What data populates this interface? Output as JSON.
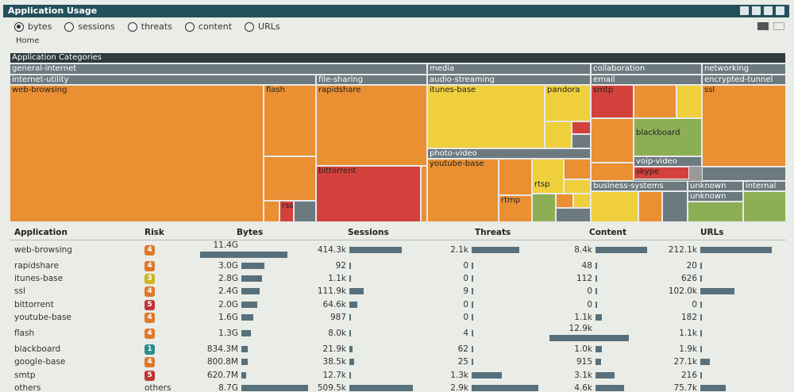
{
  "title": "Application Usage",
  "radios": [
    {
      "label": "bytes",
      "selected": true
    },
    {
      "label": "sessions",
      "selected": false
    },
    {
      "label": "threats",
      "selected": false
    },
    {
      "label": "content",
      "selected": false
    },
    {
      "label": "URLs",
      "selected": false
    }
  ],
  "home": "Home",
  "treemap": {
    "root": "Application Categories",
    "categories": [
      "general-internet",
      "media",
      "collaboration",
      "networking"
    ],
    "subcategories": [
      "internet-utility",
      "file-sharing",
      "audio-streaming",
      "email",
      "encrypted-tunnel",
      "photo-video",
      "business-systems",
      "unknown",
      "internal",
      "voip-video",
      "unknown"
    ],
    "apps": [
      "web-browsing",
      "flash",
      "rapidshare",
      "itunes-base",
      "pandora",
      "smtp",
      "ssl",
      "bittorrent",
      "youtube-base",
      "blackboard",
      "skype",
      "rtmp",
      "rtsp",
      "rss"
    ]
  },
  "table": {
    "headers": [
      "Application",
      "Risk",
      "Bytes",
      "Sessions",
      "Threats",
      "Content",
      "URLs"
    ],
    "rows": [
      {
        "app": "web-browsing",
        "risk": "4",
        "risk_color": "#e0782a",
        "bytes": "11.4G",
        "bytes_pct": 1.0,
        "sessions": "414.3k",
        "sessions_pct": 0.82,
        "threats": "2.1k",
        "threats_pct": 0.72,
        "content": "8.4k",
        "content_pct": 0.65,
        "urls": "212.1k",
        "urls_pct": 1.0
      },
      {
        "app": "rapidshare",
        "risk": "4",
        "risk_color": "#e0782a",
        "bytes": "3.0G",
        "bytes_pct": 0.26,
        "sessions": "92",
        "sessions_pct": 0.01,
        "threats": "0",
        "threats_pct": 0,
        "content": "48",
        "content_pct": 0.01,
        "urls": "20",
        "urls_pct": 0.01
      },
      {
        "app": "itunes-base",
        "risk": "3",
        "risk_color": "#cdb81f",
        "bytes": "2.8G",
        "bytes_pct": 0.24,
        "sessions": "1.1k",
        "sessions_pct": 0.01,
        "threats": "0",
        "threats_pct": 0,
        "content": "112",
        "content_pct": 0.01,
        "urls": "626",
        "urls_pct": 0.01
      },
      {
        "app": "ssl",
        "risk": "4",
        "risk_color": "#e0782a",
        "bytes": "2.4G",
        "bytes_pct": 0.21,
        "sessions": "111.9k",
        "sessions_pct": 0.22,
        "threats": "9",
        "threats_pct": 0.01,
        "content": "0",
        "content_pct": 0,
        "urls": "102.0k",
        "urls_pct": 0.48
      },
      {
        "app": "bittorrent",
        "risk": "5",
        "risk_color": "#c23434",
        "bytes": "2.0G",
        "bytes_pct": 0.18,
        "sessions": "64.6k",
        "sessions_pct": 0.13,
        "threats": "0",
        "threats_pct": 0,
        "content": "0",
        "content_pct": 0,
        "urls": "0",
        "urls_pct": 0
      },
      {
        "app": "youtube-base",
        "risk": "4",
        "risk_color": "#e0782a",
        "bytes": "1.6G",
        "bytes_pct": 0.14,
        "sessions": "987",
        "sessions_pct": 0.01,
        "threats": "0",
        "threats_pct": 0,
        "content": "1.1k",
        "content_pct": 0.08,
        "urls": "182",
        "urls_pct": 0.01
      },
      {
        "app": "flash",
        "risk": "4",
        "risk_color": "#e0782a",
        "bytes": "1.3G",
        "bytes_pct": 0.11,
        "sessions": "8.0k",
        "sessions_pct": 0.02,
        "threats": "4",
        "threats_pct": 0.01,
        "content": "12.9k",
        "content_pct": 1.0,
        "urls": "1.1k",
        "urls_pct": 0.01
      },
      {
        "app": "blackboard",
        "risk": "1",
        "risk_color": "#2f8a8a",
        "bytes": "834.3M",
        "bytes_pct": 0.07,
        "sessions": "21.9k",
        "sessions_pct": 0.05,
        "threats": "62",
        "threats_pct": 0.01,
        "content": "1.0k",
        "content_pct": 0.08,
        "urls": "1.9k",
        "urls_pct": 0.01
      },
      {
        "app": "google-base",
        "risk": "4",
        "risk_color": "#e0782a",
        "bytes": "800.8M",
        "bytes_pct": 0.07,
        "sessions": "38.5k",
        "sessions_pct": 0.08,
        "threats": "25",
        "threats_pct": 0.01,
        "content": "915",
        "content_pct": 0.07,
        "urls": "27.1k",
        "urls_pct": 0.13
      },
      {
        "app": "smtp",
        "risk": "5",
        "risk_color": "#c23434",
        "bytes": "620.7M",
        "bytes_pct": 0.05,
        "sessions": "12.7k",
        "sessions_pct": 0.03,
        "threats": "1.3k",
        "threats_pct": 0.45,
        "content": "3.1k",
        "content_pct": 0.24,
        "urls": "216",
        "urls_pct": 0.01
      },
      {
        "app": "others",
        "risk": "others",
        "risk_color": "",
        "bytes": "8.7G",
        "bytes_pct": 0.76,
        "sessions": "509.5k",
        "sessions_pct": 1.0,
        "threats": "2.9k",
        "threats_pct": 1.0,
        "content": "4.6k",
        "content_pct": 0.36,
        "urls": "75.7k",
        "urls_pct": 0.36
      }
    ]
  }
}
